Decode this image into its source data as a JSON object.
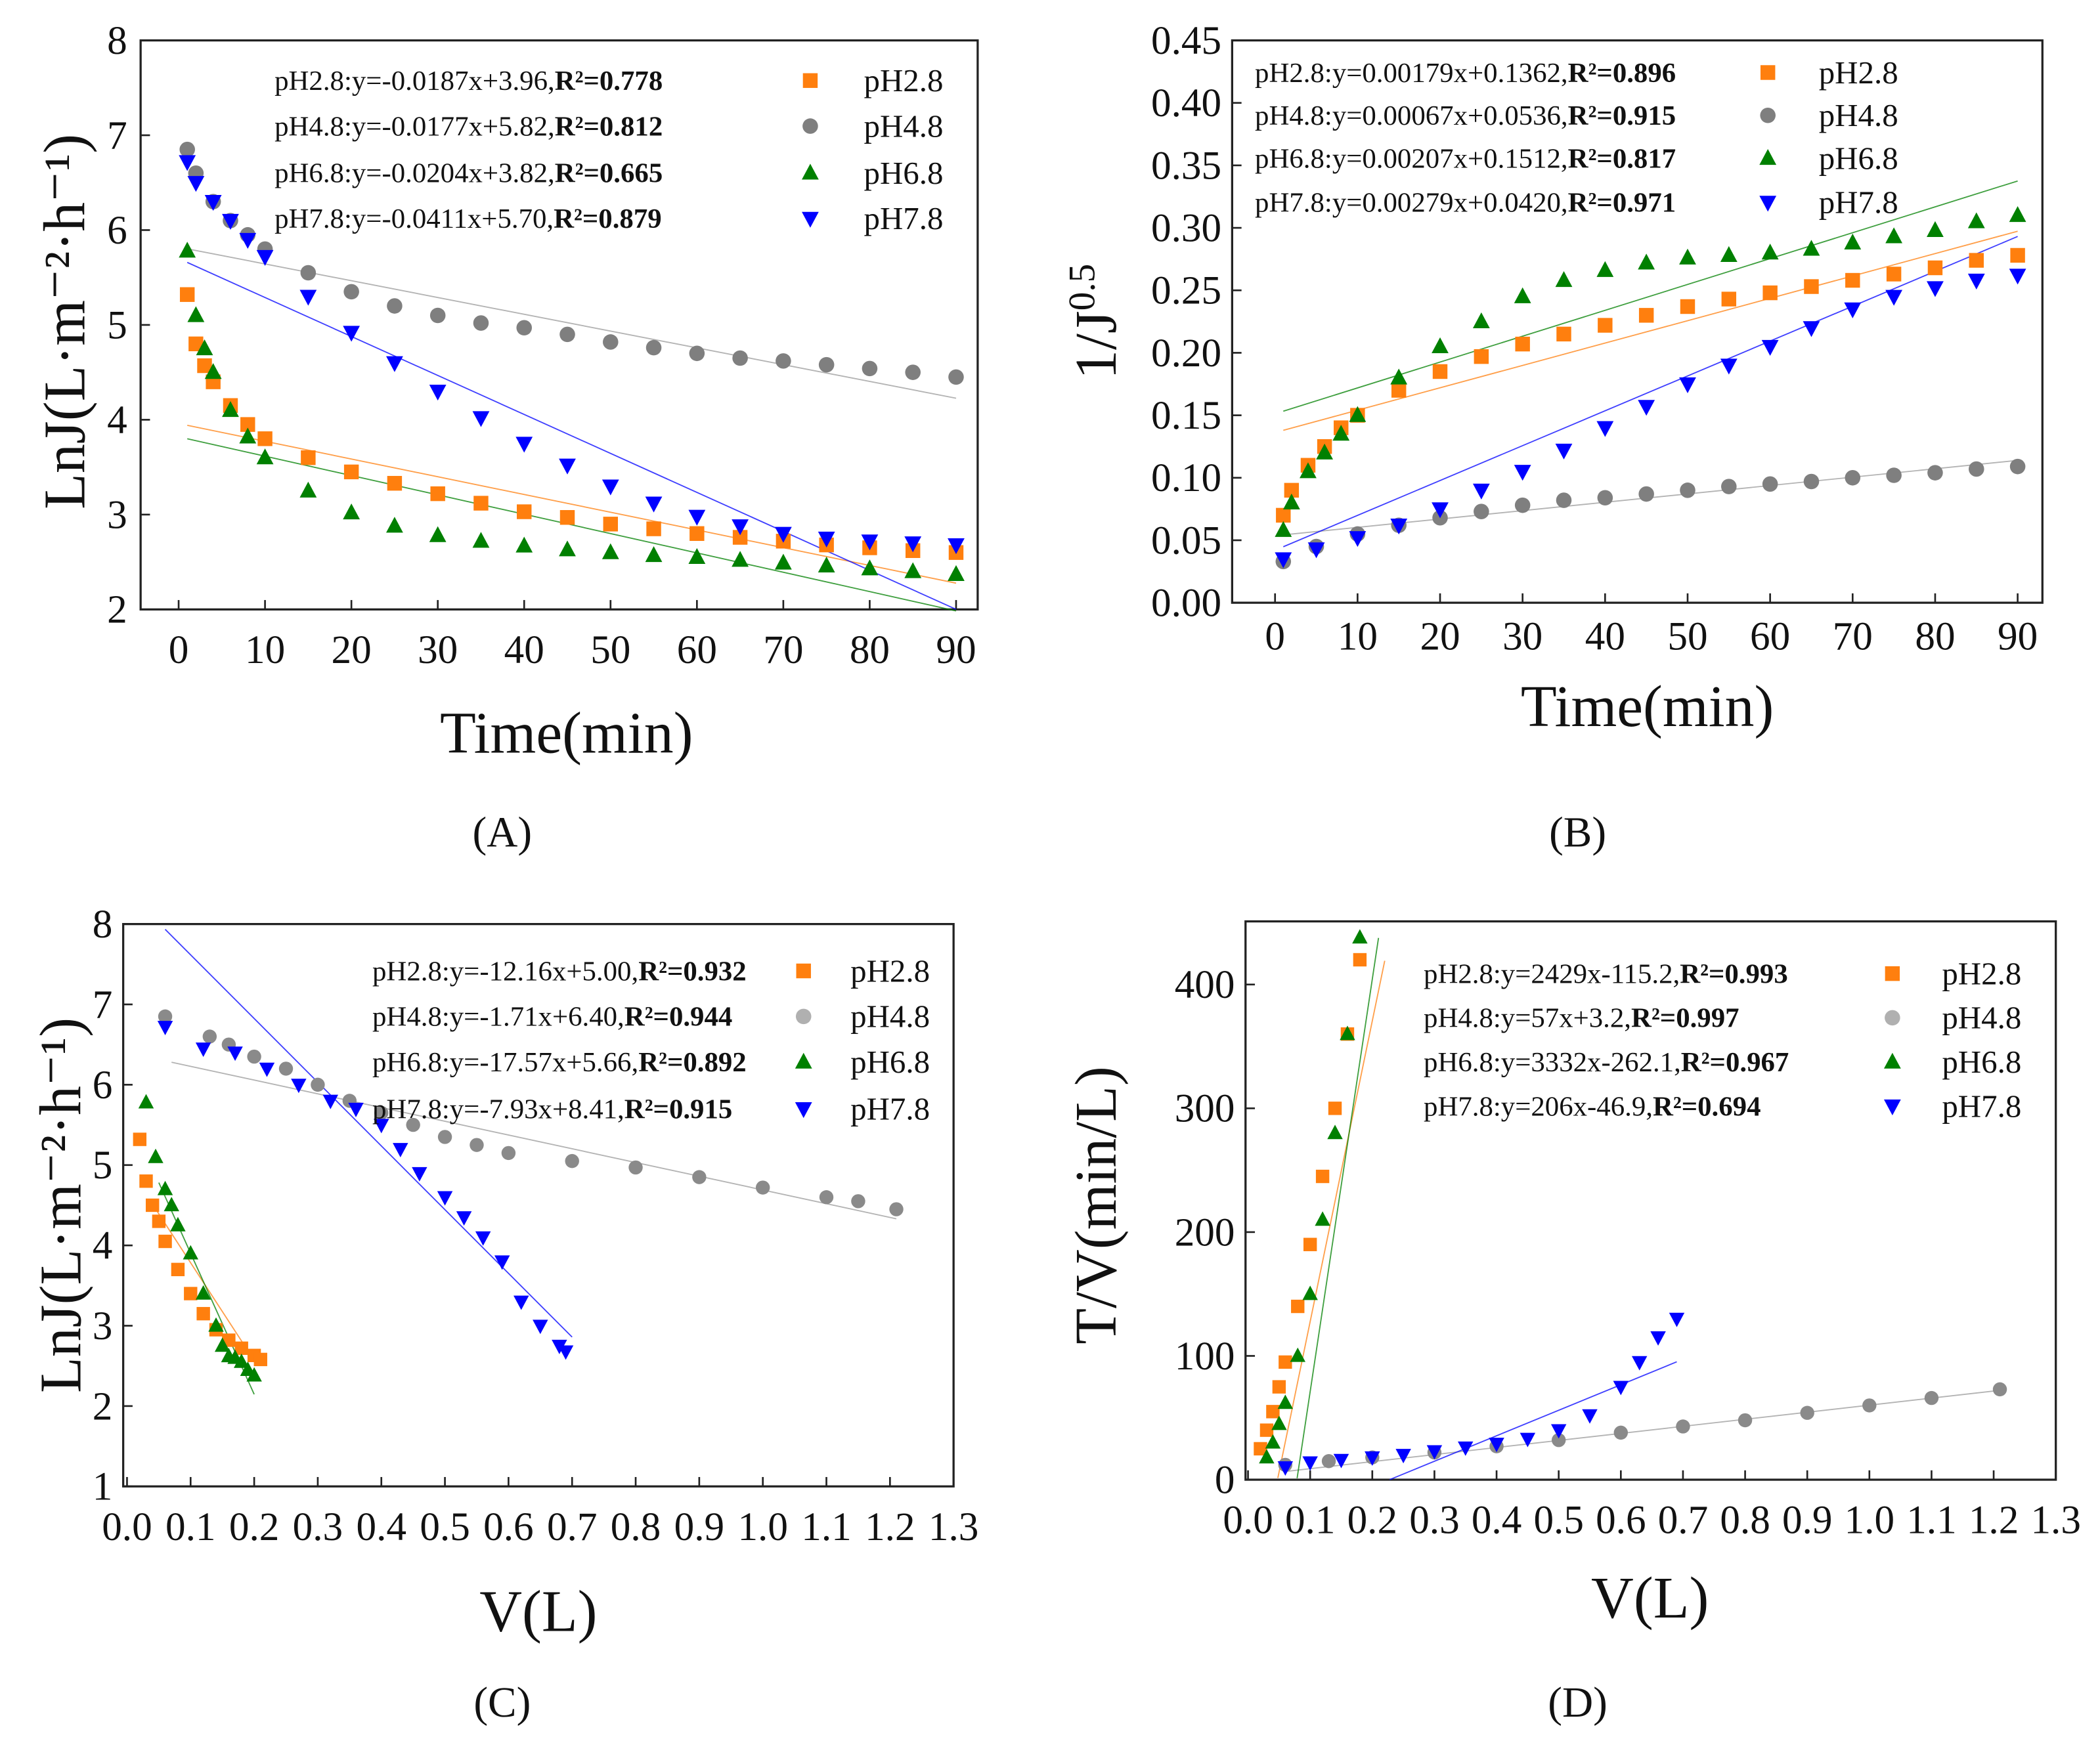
{
  "colors": {
    "pH2.8": "#ff7f0e",
    "pH4.8": "#7f7f7f",
    "pH4.8_c": "#b0b0b0",
    "pH6.8": "#008000",
    "pH7.8": "#0000ff"
  },
  "chart_data": [
    {
      "id": "A",
      "panel_label": "(A)",
      "type": "scatter",
      "xlabel": "Time(min)",
      "ylabel": "LnJ(L·m⁻²·h⁻¹)",
      "xlim": [
        -4.4,
        92.5
      ],
      "ylim": [
        2,
        8
      ],
      "xticks": [
        "0",
        "10",
        "20",
        "30",
        "40",
        "50",
        "60",
        "70",
        "80",
        "90"
      ],
      "xtick_values": [
        0,
        10,
        20,
        30,
        40,
        50,
        60,
        70,
        80,
        90
      ],
      "yticks": [
        "2",
        "3",
        "4",
        "5",
        "6",
        "7",
        "8"
      ],
      "ytick_values": [
        2,
        3,
        4,
        5,
        6,
        7,
        8
      ],
      "series": [
        {
          "name": "pH2.8",
          "marker": "square",
          "eq": "pH2.8:y=-0.0187x+3.96,",
          "r2": "R²=0.778",
          "fit": {
            "slope": -0.0187,
            "intercept": 3.96,
            "range": [
              1,
              90
            ]
          },
          "x": [
            1,
            2,
            3,
            4,
            6,
            8,
            10,
            15,
            20,
            25,
            30,
            35,
            40,
            45,
            50,
            55,
            60,
            65,
            70,
            75,
            80,
            85,
            90
          ],
          "y": [
            5.32,
            4.8,
            4.57,
            4.4,
            4.15,
            3.95,
            3.8,
            3.6,
            3.45,
            3.33,
            3.22,
            3.12,
            3.03,
            2.97,
            2.9,
            2.85,
            2.8,
            2.76,
            2.72,
            2.68,
            2.65,
            2.62,
            2.6
          ]
        },
        {
          "name": "pH4.8",
          "marker": "circle",
          "eq": "pH4.8:y=-0.0177x+5.82,",
          "r2": "R²=0.812",
          "fit": {
            "slope": -0.0177,
            "intercept": 5.82,
            "range": [
              1,
              90
            ]
          },
          "x": [
            1,
            2,
            4,
            6,
            8,
            10,
            15,
            20,
            25,
            30,
            35,
            40,
            45,
            50,
            55,
            60,
            65,
            70,
            75,
            80,
            85,
            90
          ],
          "y": [
            6.85,
            6.6,
            6.3,
            6.1,
            5.95,
            5.8,
            5.55,
            5.35,
            5.2,
            5.1,
            5.02,
            4.97,
            4.9,
            4.82,
            4.76,
            4.7,
            4.65,
            4.62,
            4.58,
            4.54,
            4.5,
            4.45
          ]
        },
        {
          "name": "pH6.8",
          "marker": "triangle-up",
          "eq": "pH6.8:y=-0.0204x+3.82,",
          "r2": "R²=0.665",
          "fit": {
            "slope": -0.0204,
            "intercept": 3.82,
            "range": [
              1,
              90
            ]
          },
          "x": [
            1,
            2,
            3,
            4,
            6,
            8,
            10,
            15,
            20,
            25,
            30,
            35,
            40,
            45,
            50,
            55,
            60,
            65,
            70,
            75,
            80,
            85,
            90
          ],
          "y": [
            5.78,
            5.1,
            4.75,
            4.5,
            4.1,
            3.82,
            3.6,
            3.25,
            3.02,
            2.88,
            2.78,
            2.72,
            2.67,
            2.63,
            2.6,
            2.57,
            2.55,
            2.52,
            2.49,
            2.46,
            2.43,
            2.4,
            2.37
          ]
        },
        {
          "name": "pH7.8",
          "marker": "triangle-down",
          "eq": "pH7.8:y=-0.0411x+5.70,",
          "r2": "R²=0.879",
          "fit": {
            "slope": -0.0411,
            "intercept": 5.7,
            "range": [
              1,
              90
            ]
          },
          "x": [
            1,
            2,
            4,
            6,
            8,
            10,
            15,
            20,
            25,
            30,
            35,
            40,
            45,
            50,
            55,
            60,
            65,
            70,
            75,
            80,
            85,
            90
          ],
          "y": [
            6.72,
            6.5,
            6.3,
            6.1,
            5.9,
            5.72,
            5.3,
            4.92,
            4.6,
            4.3,
            4.02,
            3.75,
            3.52,
            3.3,
            3.12,
            2.98,
            2.88,
            2.8,
            2.75,
            2.72,
            2.7,
            2.68
          ]
        }
      ]
    },
    {
      "id": "B",
      "panel_label": "(B)",
      "type": "scatter",
      "xlabel": "Time(min)",
      "ylabel": "1/J",
      "ylabel_sup": "0.5",
      "xlim": [
        -5.2,
        93
      ],
      "ylim": [
        0,
        0.45
      ],
      "xticks": [
        "0",
        "10",
        "20",
        "30",
        "40",
        "50",
        "60",
        "70",
        "80",
        "90"
      ],
      "xtick_values": [
        0,
        10,
        20,
        30,
        40,
        50,
        60,
        70,
        80,
        90
      ],
      "yticks": [
        "0.00",
        "0.05",
        "0.10",
        "0.15",
        "0.20",
        "0.25",
        "0.30",
        "0.35",
        "0.40",
        "0.45"
      ],
      "ytick_values": [
        0,
        0.05,
        0.1,
        0.15,
        0.2,
        0.25,
        0.3,
        0.35,
        0.4,
        0.45
      ],
      "series": [
        {
          "name": "pH2.8",
          "marker": "square",
          "eq": "pH2.8:y=0.00179x+0.1362,",
          "r2": "R²=0.896",
          "fit": {
            "slope": 0.00179,
            "intercept": 0.1362,
            "range": [
              1,
              90
            ]
          },
          "x": [
            1,
            2,
            4,
            6,
            8,
            10,
            15,
            20,
            25,
            30,
            35,
            40,
            45,
            50,
            55,
            60,
            65,
            70,
            75,
            80,
            85,
            90
          ],
          "y": [
            0.07,
            0.09,
            0.11,
            0.125,
            0.14,
            0.15,
            0.17,
            0.185,
            0.197,
            0.207,
            0.215,
            0.222,
            0.23,
            0.237,
            0.243,
            0.248,
            0.253,
            0.258,
            0.263,
            0.268,
            0.274,
            0.278
          ]
        },
        {
          "name": "pH4.8",
          "marker": "circle",
          "eq": "pH4.8:y=0.00067x+0.0536,",
          "r2": "R²=0.915",
          "fit": {
            "slope": 0.00067,
            "intercept": 0.0536,
            "range": [
              1,
              90
            ]
          },
          "x": [
            1,
            5,
            10,
            15,
            20,
            25,
            30,
            35,
            40,
            45,
            50,
            55,
            60,
            65,
            70,
            75,
            80,
            85,
            90
          ],
          "y": [
            0.033,
            0.045,
            0.055,
            0.062,
            0.068,
            0.073,
            0.078,
            0.082,
            0.084,
            0.087,
            0.09,
            0.093,
            0.095,
            0.097,
            0.1,
            0.102,
            0.104,
            0.107,
            0.109
          ]
        },
        {
          "name": "pH6.8",
          "marker": "triangle-up",
          "eq": "pH6.8:y=0.00207x+0.1512,",
          "r2": "R²=0.817",
          "fit": {
            "slope": 0.00207,
            "intercept": 0.1512,
            "range": [
              1,
              90
            ]
          },
          "x": [
            1,
            2,
            4,
            6,
            8,
            10,
            15,
            20,
            25,
            30,
            35,
            40,
            45,
            50,
            55,
            60,
            65,
            70,
            75,
            80,
            85,
            90
          ],
          "y": [
            0.058,
            0.08,
            0.105,
            0.12,
            0.135,
            0.15,
            0.18,
            0.205,
            0.225,
            0.245,
            0.258,
            0.266,
            0.272,
            0.276,
            0.278,
            0.28,
            0.283,
            0.288,
            0.293,
            0.298,
            0.305,
            0.31
          ]
        },
        {
          "name": "pH7.8",
          "marker": "triangle-down",
          "eq": "pH7.8:y=0.00279x+0.0420,",
          "r2": "R²=0.971",
          "fit": {
            "slope": 0.00279,
            "intercept": 0.042,
            "range": [
              1,
              90
            ]
          },
          "x": [
            1,
            5,
            10,
            15,
            20,
            25,
            30,
            35,
            40,
            45,
            50,
            55,
            60,
            65,
            70,
            75,
            80,
            85,
            90
          ],
          "y": [
            0.035,
            0.043,
            0.052,
            0.062,
            0.075,
            0.09,
            0.105,
            0.122,
            0.14,
            0.157,
            0.175,
            0.19,
            0.205,
            0.22,
            0.235,
            0.245,
            0.252,
            0.258,
            0.262
          ]
        }
      ]
    },
    {
      "id": "C",
      "panel_label": "(C)",
      "type": "scatter",
      "xlabel": "V(L)",
      "ylabel": "LnJ(L·m⁻²·h⁻¹)",
      "xlim": [
        -0.006,
        1.3
      ],
      "ylim": [
        1,
        8
      ],
      "xticks": [
        "0.0",
        "0.1",
        "0.2",
        "0.3",
        "0.4",
        "0.5",
        "0.6",
        "0.7",
        "0.8",
        "0.9",
        "1.0",
        "1.1",
        "1.2",
        "1.3"
      ],
      "xtick_values": [
        0,
        0.1,
        0.2,
        0.3,
        0.4,
        0.5,
        0.6,
        0.7,
        0.8,
        0.9,
        1.0,
        1.1,
        1.2,
        1.3
      ],
      "yticks": [
        "1",
        "2",
        "3",
        "4",
        "5",
        "6",
        "7",
        "8"
      ],
      "ytick_values": [
        1,
        2,
        3,
        4,
        5,
        6,
        7,
        8
      ],
      "series": [
        {
          "name": "pH2.8",
          "marker": "square",
          "eq": "pH2.8:y=-12.16x+5.00,",
          "r2": "R²=0.932",
          "fit": {
            "slope": -12.16,
            "intercept": 5.0,
            "range": [
              0.04,
              0.2
            ]
          },
          "x": [
            0.02,
            0.03,
            0.04,
            0.05,
            0.06,
            0.08,
            0.1,
            0.12,
            0.14,
            0.16,
            0.18,
            0.2,
            0.21
          ],
          "y": [
            5.32,
            4.8,
            4.5,
            4.3,
            4.05,
            3.7,
            3.4,
            3.15,
            2.95,
            2.82,
            2.72,
            2.63,
            2.58
          ]
        },
        {
          "name": "pH4.8",
          "marker": "circle",
          "eq": "pH4.8:y=-1.71x+6.40,",
          "r2": "R²=0.944",
          "fit": {
            "slope": -1.71,
            "intercept": 6.4,
            "range": [
              0.07,
              1.21
            ]
          },
          "x": [
            0.06,
            0.13,
            0.16,
            0.2,
            0.25,
            0.3,
            0.35,
            0.4,
            0.45,
            0.5,
            0.55,
            0.6,
            0.7,
            0.8,
            0.9,
            1.0,
            1.1,
            1.15,
            1.21
          ],
          "y": [
            6.85,
            6.6,
            6.5,
            6.35,
            6.2,
            6.0,
            5.8,
            5.65,
            5.5,
            5.35,
            5.25,
            5.15,
            5.05,
            4.97,
            4.85,
            4.72,
            4.6,
            4.55,
            4.45
          ]
        },
        {
          "name": "pH6.8",
          "marker": "triangle-up",
          "eq": "pH6.8:y=-17.57x+5.66,",
          "r2": "R²=0.892",
          "fit": {
            "slope": -17.57,
            "intercept": 5.66,
            "range": [
              0.05,
              0.2
            ]
          },
          "x": [
            0.03,
            0.045,
            0.06,
            0.07,
            0.08,
            0.1,
            0.12,
            0.14,
            0.15,
            0.16,
            0.17,
            0.18,
            0.19,
            0.2
          ],
          "y": [
            5.78,
            5.1,
            4.7,
            4.5,
            4.25,
            3.9,
            3.4,
            3.0,
            2.75,
            2.62,
            2.6,
            2.55,
            2.45,
            2.38
          ]
        },
        {
          "name": "pH7.8",
          "marker": "triangle-down",
          "eq": "pH7.8:y=-7.93x+8.41,",
          "r2": "R²=0.915",
          "fit": {
            "slope": -7.93,
            "intercept": 8.41,
            "range": [
              0.06,
              0.7
            ]
          },
          "x": [
            0.06,
            0.12,
            0.17,
            0.22,
            0.27,
            0.32,
            0.36,
            0.4,
            0.43,
            0.46,
            0.5,
            0.53,
            0.56,
            0.59,
            0.62,
            0.65,
            0.68,
            0.69
          ],
          "y": [
            6.72,
            6.45,
            6.4,
            6.2,
            6.0,
            5.8,
            5.7,
            5.5,
            5.2,
            4.9,
            4.6,
            4.35,
            4.1,
            3.8,
            3.3,
            3.0,
            2.75,
            2.68
          ]
        }
      ]
    },
    {
      "id": "D",
      "panel_label": "(D)",
      "type": "scatter",
      "xlabel": "V(L)",
      "ylabel": "T/V(min/L)",
      "xlim": [
        -0.004,
        1.3
      ],
      "ylim": [
        0,
        451
      ],
      "xticks": [
        "0.0",
        "0.1",
        "0.2",
        "0.3",
        "0.4",
        "0.5",
        "0.6",
        "0.7",
        "0.8",
        "0.9",
        "1.0",
        "1.1",
        "1.2",
        "1.3"
      ],
      "xtick_values": [
        0,
        0.1,
        0.2,
        0.3,
        0.4,
        0.5,
        0.6,
        0.7,
        0.8,
        0.9,
        1.0,
        1.1,
        1.2,
        1.3
      ],
      "yticks": [
        "0",
        "100",
        "200",
        "300",
        "400"
      ],
      "ytick_values": [
        0,
        100,
        200,
        300,
        400
      ],
      "series": [
        {
          "name": "pH2.8",
          "marker": "square",
          "eq": "pH2.8:y=2429x-115.2,",
          "r2": "R²=0.993",
          "fit": {
            "slope": 2429,
            "intercept": -115.2,
            "range": [
              0.048,
              0.22
            ]
          },
          "x": [
            0.02,
            0.03,
            0.04,
            0.05,
            0.06,
            0.08,
            0.1,
            0.12,
            0.14,
            0.16,
            0.18
          ],
          "y": [
            25,
            40,
            55,
            75,
            95,
            140,
            190,
            245,
            300,
            360,
            420
          ]
        },
        {
          "name": "pH4.8",
          "marker": "circle",
          "eq": "pH4.8:y=57x+3.2,",
          "r2": "R²=0.997",
          "fit": {
            "slope": 57,
            "intercept": 3.2,
            "range": [
              0.06,
              1.21
            ]
          },
          "x": [
            0.06,
            0.13,
            0.2,
            0.3,
            0.4,
            0.5,
            0.6,
            0.7,
            0.8,
            0.9,
            1.0,
            1.1,
            1.21
          ],
          "y": [
            12,
            15,
            18,
            22,
            27,
            32,
            38,
            43,
            48,
            54,
            60,
            66,
            73
          ]
        },
        {
          "name": "pH6.8",
          "marker": "triangle-up",
          "eq": "pH6.8:y=3332x-262.1,",
          "r2": "R²=0.967",
          "fit": {
            "slope": 3332,
            "intercept": -262.1,
            "range": [
              0.079,
              0.21
            ]
          },
          "x": [
            0.03,
            0.04,
            0.05,
            0.06,
            0.08,
            0.1,
            0.12,
            0.14,
            0.16,
            0.18
          ],
          "y": [
            18,
            30,
            45,
            62,
            100,
            150,
            210,
            280,
            360,
            438
          ]
        },
        {
          "name": "pH7.8",
          "marker": "triangle-down",
          "eq": "pH7.8:y=206x-46.9,",
          "r2": "R²=0.694",
          "fit": {
            "slope": 206,
            "intercept": -46.9,
            "range": [
              0.228,
              0.69
            ]
          },
          "x": [
            0.06,
            0.1,
            0.15,
            0.2,
            0.25,
            0.3,
            0.35,
            0.4,
            0.45,
            0.5,
            0.55,
            0.6,
            0.63,
            0.66,
            0.69
          ],
          "y": [
            10,
            14,
            16,
            18,
            20,
            23,
            26,
            29,
            33,
            40,
            52,
            75,
            95,
            115,
            130
          ]
        }
      ]
    }
  ]
}
